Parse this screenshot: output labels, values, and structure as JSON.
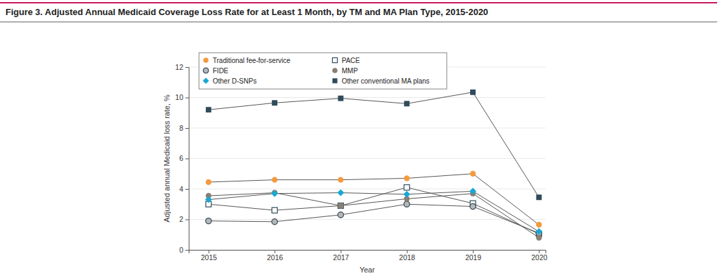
{
  "chart_data": {
    "type": "line",
    "title": "Figure 3. Adjusted Annual Medicaid Coverage Loss Rate for at Least 1 Month, by TM and MA Plan Type, 2015-2020",
    "x_label": "Year",
    "y_label": "Adjusted annual Medicaid loss rate, %",
    "x": [
      2015,
      2016,
      2017,
      2018,
      2019,
      2020
    ],
    "xlim": [
      2014.7,
      2020.1
    ],
    "xticks": [
      2015,
      2016,
      2017,
      2018,
      2019,
      2020
    ],
    "ylim": [
      0,
      12
    ],
    "yticks": [
      0,
      2,
      4,
      6,
      8,
      10,
      12
    ],
    "grid": true,
    "legend": "upper left",
    "series": [
      {
        "name": "Traditional fee-for-service",
        "color": "#f39a3c",
        "marker": "circle",
        "values": [
          4.45,
          4.6,
          4.6,
          4.7,
          5.0,
          1.65
        ]
      },
      {
        "name": "PACE",
        "color": "#2f4a5a",
        "marker": "square-open",
        "values": [
          3.0,
          2.6,
          2.9,
          4.1,
          3.05,
          1.05
        ]
      },
      {
        "name": "FIDE",
        "color": "#b5b9bc",
        "marker": "circle-outlined",
        "values": [
          1.9,
          1.85,
          2.3,
          3.0,
          2.85,
          1.1
        ]
      },
      {
        "name": "MMP",
        "color": "#8a7f73",
        "marker": "circle",
        "values": [
          3.55,
          3.75,
          2.9,
          3.35,
          3.7,
          0.8
        ]
      },
      {
        "name": "Other D-SNPs",
        "color": "#1aa7d4",
        "marker": "diamond",
        "values": [
          3.3,
          3.7,
          3.75,
          3.65,
          3.85,
          1.2
        ]
      },
      {
        "name": "Other conventional MA plans",
        "color": "#2f4a5a",
        "marker": "square",
        "values": [
          9.2,
          9.65,
          9.95,
          9.6,
          10.35,
          3.45
        ]
      }
    ]
  }
}
